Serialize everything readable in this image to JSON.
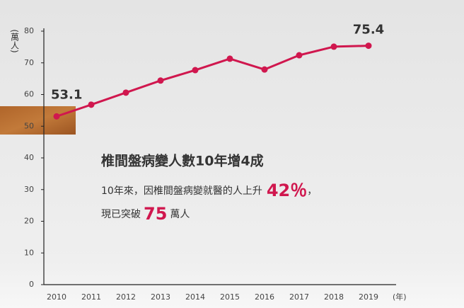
{
  "chart_data": {
    "type": "line",
    "y_label": "(萬人)",
    "x_label": "(年)",
    "categories": [
      "2010",
      "2011",
      "2012",
      "2013",
      "2014",
      "2015",
      "2016",
      "2017",
      "2018",
      "2019"
    ],
    "series": [
      {
        "color": "#d0174e",
        "values": [
          53.1,
          56.8,
          60.6,
          64.4,
          67.7,
          71.3,
          67.9,
          72.4,
          75.1,
          75.4
        ]
      }
    ],
    "ylim": [
      0,
      80
    ],
    "yticks": [
      0,
      10,
      20,
      30,
      40,
      50,
      60,
      70,
      80
    ],
    "annotation": {
      "title": "椎間盤病變人數10年增4成",
      "line1": [
        "10年來，因椎間盤病變就醫的人上升",
        "42％",
        "，"
      ],
      "line2": [
        "現已突破",
        "75",
        "萬人"
      ]
    }
  }
}
